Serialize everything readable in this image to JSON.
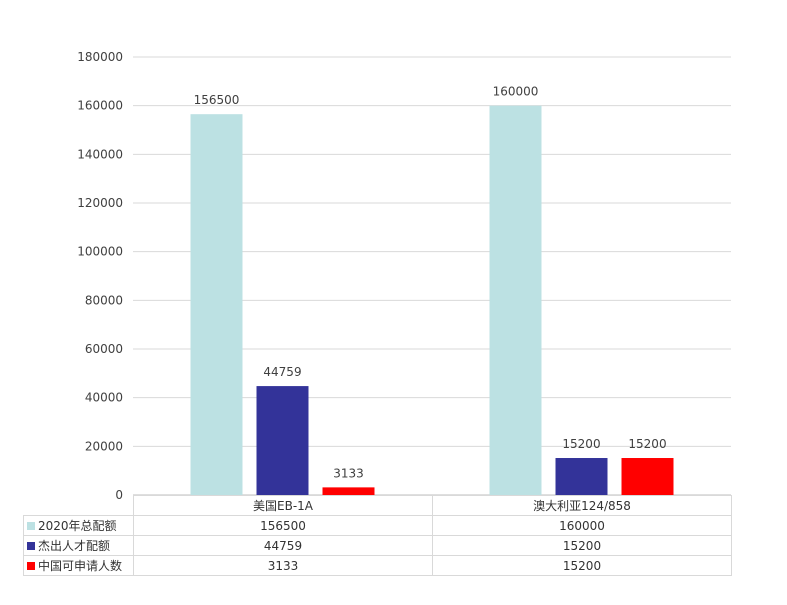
{
  "chart_data": {
    "type": "bar",
    "categories": [
      "美国EB-1A",
      "澳大利亚124/858"
    ],
    "series": [
      {
        "name": "2020年总配额",
        "color": "#bce1e3",
        "values": [
          156500,
          160000
        ]
      },
      {
        "name": "杰出人才配额",
        "color": "#333399",
        "values": [
          44759,
          15200
        ]
      },
      {
        "name": "中国可申请人数",
        "color": "#ff0000",
        "values": [
          3133,
          15200
        ]
      }
    ],
    "ylim": [
      0,
      180000
    ],
    "yticks": [
      0,
      20000,
      40000,
      60000,
      80000,
      100000,
      120000,
      140000,
      160000,
      180000
    ],
    "grid": true,
    "legend": "data-table",
    "data_labels": true
  }
}
